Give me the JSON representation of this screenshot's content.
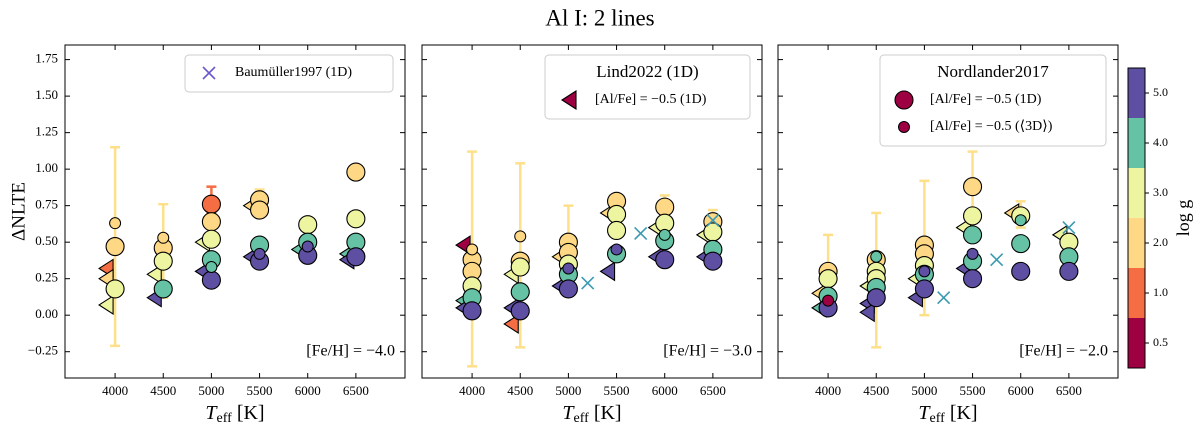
{
  "title": "Al I: 2 lines",
  "colorbar": {
    "label": "log g",
    "ticks": [
      0.5,
      {
        "value": 1,
        "label": "1.0"
      },
      {
        "value": 2,
        "label": "2.0"
      },
      {
        "value": 3,
        "label": "3.0"
      },
      {
        "value": 4,
        "label": "4.0"
      },
      {
        "value": 5,
        "label": "5.0"
      }
    ],
    "colors": [
      "#9e0142",
      "#f46d43",
      "#fed884",
      "#eef5a0",
      "#66c2a5",
      "#5e4fa2"
    ]
  },
  "chart_data": [
    {
      "type": "scatter",
      "ylabel": "ΔNLTE",
      "xlabel": {
        "symbol": "T",
        "subscript": "eff",
        "unit": " [K]"
      },
      "annotation": "[Fe/H] = −4.0",
      "legend": "upper right",
      "show_ytick_labels": true,
      "xlim": [
        3480,
        7010
      ],
      "ylim": [
        -0.43,
        1.85
      ],
      "xticks": [
        4000,
        4500,
        5000,
        5500,
        6000,
        6500
      ],
      "yticks": [
        {
          "value": -0.25,
          "label": "−0.25"
        },
        {
          "value": 0,
          "label": "0.00"
        },
        0.25,
        {
          "value": 0.5,
          "label": "0.50"
        },
        0.75,
        {
          "value": 1,
          "label": "1.00"
        },
        1.25,
        {
          "value": 1.5,
          "label": "1.50"
        },
        1.75
      ],
      "error_bars": [
        {
          "x": 4000,
          "low": -0.21,
          "high": 1.15,
          "color": "#fee08b"
        },
        {
          "x": 4500,
          "low": 0.12,
          "high": 0.76,
          "color": "#fee08b"
        },
        {
          "x": 5000,
          "low": 0.7,
          "high": 0.88,
          "color": "#f46d43"
        },
        {
          "x": 5500,
          "low": 0.7,
          "high": 0.86,
          "color": "#fee08b"
        }
      ],
      "series": [
        {
          "marker": "triangle",
          "x": [
            4000,
            4000,
            4000,
            4500,
            4500,
            5000,
            5000,
            5500,
            5500,
            6000,
            6500,
            6500
          ],
          "values": [
            0.32,
            0.25,
            0.07,
            0.28,
            0.12,
            0.5,
            0.3,
            0.75,
            0.4,
            0.45,
            0.42,
            0.38
          ],
          "colors": [
            "#f46d43",
            "#fed884",
            "#eef5a0",
            "#eef5a0",
            "#5e4fa2",
            "#eef5a0",
            "#5e4fa2",
            "#fed884",
            "#5e4fa2",
            "#66c2a5",
            "#66c2a5",
            "#5e4fa2"
          ]
        },
        {
          "marker": "circle",
          "x": [
            4000,
            4000,
            4500,
            4500,
            4500,
            5000,
            5000,
            5000,
            5000,
            5000,
            5500,
            5500,
            5500,
            5500,
            6000,
            6000,
            6000,
            6500,
            6500,
            6500,
            6500
          ],
          "values": [
            0.47,
            0.18,
            0.46,
            0.37,
            0.18,
            0.76,
            0.64,
            0.52,
            0.38,
            0.24,
            0.79,
            0.72,
            0.48,
            0.37,
            0.62,
            0.5,
            0.41,
            0.98,
            0.66,
            0.5,
            0.4
          ],
          "colors": [
            "#fed884",
            "#eef5a0",
            "#fed884",
            "#eef5a0",
            "#66c2a5",
            "#f46d43",
            "#fed884",
            "#eef5a0",
            "#66c2a5",
            "#5e4fa2",
            "#fed884",
            "#fed884",
            "#66c2a5",
            "#5e4fa2",
            "#eef5a0",
            "#66c2a5",
            "#5e4fa2",
            "#fed884",
            "#eef5a0",
            "#66c2a5",
            "#5e4fa2"
          ]
        },
        {
          "marker": "small-circle",
          "x": [
            4000,
            4500,
            5000,
            5500,
            6000
          ],
          "values": [
            0.63,
            0.53,
            0.33,
            0.42,
            0.47
          ],
          "colors": [
            "#fed884",
            "#fed884",
            "#66c2a5",
            "#5e4fa2",
            "#5e4fa2"
          ]
        },
        {
          "marker": "cross",
          "name": "Baumüller1997 (1D)",
          "color": "#6a5acd",
          "x": [],
          "values": []
        }
      ]
    },
    {
      "type": "scatter",
      "xlabel": {
        "symbol": "T",
        "subscript": "eff",
        "unit": " [K]"
      },
      "annotation": "[Fe/H] = −3.0",
      "legend": "upper right",
      "legend_title": "Lind2022 (1D)",
      "show_ytick_labels": false,
      "xlim": [
        3480,
        7010
      ],
      "ylim": [
        -0.43,
        1.85
      ],
      "xticks": [
        4000,
        4500,
        5000,
        5500,
        6000,
        6500
      ],
      "yticks": [
        -0.25,
        0,
        0.25,
        0.5,
        0.75,
        1,
        1.25,
        1.5,
        1.75
      ],
      "error_bars": [
        {
          "x": 4000,
          "low": -0.35,
          "high": 1.12,
          "color": "#fee08b"
        },
        {
          "x": 4500,
          "low": -0.22,
          "high": 1.04,
          "color": "#fee08b"
        },
        {
          "x": 5000,
          "low": 0.3,
          "high": 0.75,
          "color": "#fee08b"
        },
        {
          "x": 5500,
          "low": 0.6,
          "high": 0.82,
          "color": "#fee08b"
        },
        {
          "x": 6000,
          "low": 0.55,
          "high": 0.82,
          "color": "#fee08b"
        },
        {
          "x": 6500,
          "low": 0.5,
          "high": 0.72,
          "color": "#fee08b"
        }
      ],
      "series": [
        {
          "marker": "triangle",
          "name": "[Al/Fe] = −0.5 (1D)",
          "legend_color": "#9e0142",
          "x": [
            4000,
            4000,
            4000,
            4500,
            4500,
            4500,
            5000,
            5000,
            5500,
            5500,
            6000,
            6000,
            6500,
            6500
          ],
          "values": [
            0.48,
            0.1,
            0.05,
            0.28,
            0.05,
            -0.06,
            0.4,
            0.2,
            0.7,
            0.3,
            0.6,
            0.4,
            0.55,
            0.4
          ],
          "colors": [
            "#9e0142",
            "#66c2a5",
            "#5e4fa2",
            "#eef5a0",
            "#5e4fa2",
            "#f46d43",
            "#fed884",
            "#5e4fa2",
            "#fed884",
            "#5e4fa2",
            "#eef5a0",
            "#5e4fa2",
            "#eef5a0",
            "#5e4fa2"
          ]
        },
        {
          "marker": "circle",
          "x": [
            4000,
            4000,
            4000,
            4000,
            4000,
            4500,
            4500,
            4500,
            4500,
            5000,
            5000,
            5000,
            5000,
            5000,
            5500,
            5500,
            5500,
            5500,
            6000,
            6000,
            6000,
            6000,
            6500,
            6500,
            6500,
            6500
          ],
          "values": [
            0.38,
            0.3,
            0.2,
            0.12,
            0.03,
            0.37,
            0.33,
            0.16,
            0.03,
            0.5,
            0.43,
            0.35,
            0.28,
            0.18,
            0.78,
            0.69,
            0.58,
            0.42,
            0.74,
            0.63,
            0.51,
            0.38,
            0.64,
            0.57,
            0.45,
            0.37
          ],
          "colors": [
            "#fed884",
            "#fed884",
            "#eef5a0",
            "#66c2a5",
            "#5e4fa2",
            "#fed884",
            "#eef5a0",
            "#66c2a5",
            "#5e4fa2",
            "#fed884",
            "#fed884",
            "#eef5a0",
            "#66c2a5",
            "#5e4fa2",
            "#fed884",
            "#eef5a0",
            "#eef5a0",
            "#66c2a5",
            "#fed884",
            "#eef5a0",
            "#66c2a5",
            "#5e4fa2",
            "#fed884",
            "#eef5a0",
            "#66c2a5",
            "#5e4fa2"
          ]
        },
        {
          "marker": "small-circle",
          "x": [
            4000,
            4500,
            5000,
            5500,
            6000
          ],
          "values": [
            0.45,
            0.54,
            0.32,
            0.45,
            0.55
          ],
          "colors": [
            "#fed884",
            "#fed884",
            "#5e4fa2",
            "#5e4fa2",
            "#66c2a5"
          ]
        },
        {
          "marker": "cross",
          "color": "#3b9ab2",
          "x": [
            5200,
            5750,
            6500
          ],
          "values": [
            0.22,
            0.56,
            0.65
          ]
        }
      ]
    },
    {
      "type": "scatter",
      "xlabel": {
        "symbol": "T",
        "subscript": "eff",
        "unit": " [K]"
      },
      "annotation": "[Fe/H] = −2.0",
      "legend": "upper right",
      "legend_title": "Nordlander2017",
      "show_ytick_labels": false,
      "xlim": [
        3480,
        7010
      ],
      "ylim": [
        -0.43,
        1.85
      ],
      "xticks": [
        4000,
        4500,
        5000,
        5500,
        6000,
        6500
      ],
      "yticks": [
        -0.25,
        0,
        0.25,
        0.5,
        0.75,
        1,
        1.25,
        1.5,
        1.75
      ],
      "error_bars": [
        {
          "x": 4000,
          "low": 0,
          "high": 0.55,
          "color": "#fee08b"
        },
        {
          "x": 4500,
          "low": -0.22,
          "high": 0.7,
          "color": "#fee08b"
        },
        {
          "x": 5000,
          "low": 0,
          "high": 0.92,
          "color": "#fee08b"
        },
        {
          "x": 5500,
          "low": 0.5,
          "high": 1.12,
          "color": "#fee08b"
        },
        {
          "x": 6000,
          "low": 0.6,
          "high": 0.78,
          "color": "#fee08b"
        }
      ],
      "series": [
        {
          "marker": "triangle",
          "x": [
            4000,
            4000,
            4500,
            4500,
            4500,
            5000,
            5000,
            5500,
            5500,
            6000,
            6500
          ],
          "values": [
            0.15,
            0.05,
            0.2,
            0.08,
            0.02,
            0.25,
            0.12,
            0.6,
            0.32,
            0.7,
            0.55
          ],
          "colors": [
            "#fed884",
            "#66c2a5",
            "#eef5a0",
            "#5e4fa2",
            "#5e4fa2",
            "#eef5a0",
            "#5e4fa2",
            "#eef5a0",
            "#5e4fa2",
            "#fed884",
            "#eef5a0"
          ]
        },
        {
          "marker": "circle",
          "name": "[Al/Fe] = −0.5 (1D)",
          "legend_color": "#9e0142",
          "x": [
            4000,
            4000,
            4000,
            4000,
            4500,
            4500,
            4500,
            4500,
            4500,
            5000,
            5000,
            5000,
            5000,
            5000,
            5500,
            5500,
            5500,
            5500,
            5500,
            6000,
            6000,
            6000,
            6500,
            6500,
            6500
          ],
          "values": [
            0.3,
            0.25,
            0.13,
            0.05,
            0.38,
            0.3,
            0.25,
            0.19,
            0.12,
            0.48,
            0.42,
            0.34,
            0.28,
            0.18,
            0.88,
            0.68,
            0.55,
            0.37,
            0.25,
            0.68,
            0.49,
            0.3,
            0.5,
            0.4,
            0.3
          ],
          "colors": [
            "#fed884",
            "#eef5a0",
            "#66c2a5",
            "#5e4fa2",
            "#fed884",
            "#eef5a0",
            "#eef5a0",
            "#66c2a5",
            "#5e4fa2",
            "#fed884",
            "#fed884",
            "#eef5a0",
            "#66c2a5",
            "#5e4fa2",
            "#fed884",
            "#eef5a0",
            "#66c2a5",
            "#66c2a5",
            "#5e4fa2",
            "#eef5a0",
            "#66c2a5",
            "#5e4fa2",
            "#eef5a0",
            "#66c2a5",
            "#5e4fa2"
          ]
        },
        {
          "marker": "small-circle",
          "name": "[Al/Fe] = −0.5 (⟨3D⟩)",
          "legend_color": "#9e0142",
          "x": [
            4000,
            4500,
            5000,
            5500,
            6000
          ],
          "values": [
            0.1,
            0.4,
            0.3,
            0.42,
            0.65
          ],
          "colors": [
            "#9e0142",
            "#66c2a5",
            "#5e4fa2",
            "#5e4fa2",
            "#66c2a5"
          ]
        },
        {
          "marker": "cross",
          "color": "#3b9ab2",
          "x": [
            5200,
            5750,
            6500
          ],
          "values": [
            0.12,
            0.38,
            0.6
          ]
        }
      ]
    }
  ]
}
